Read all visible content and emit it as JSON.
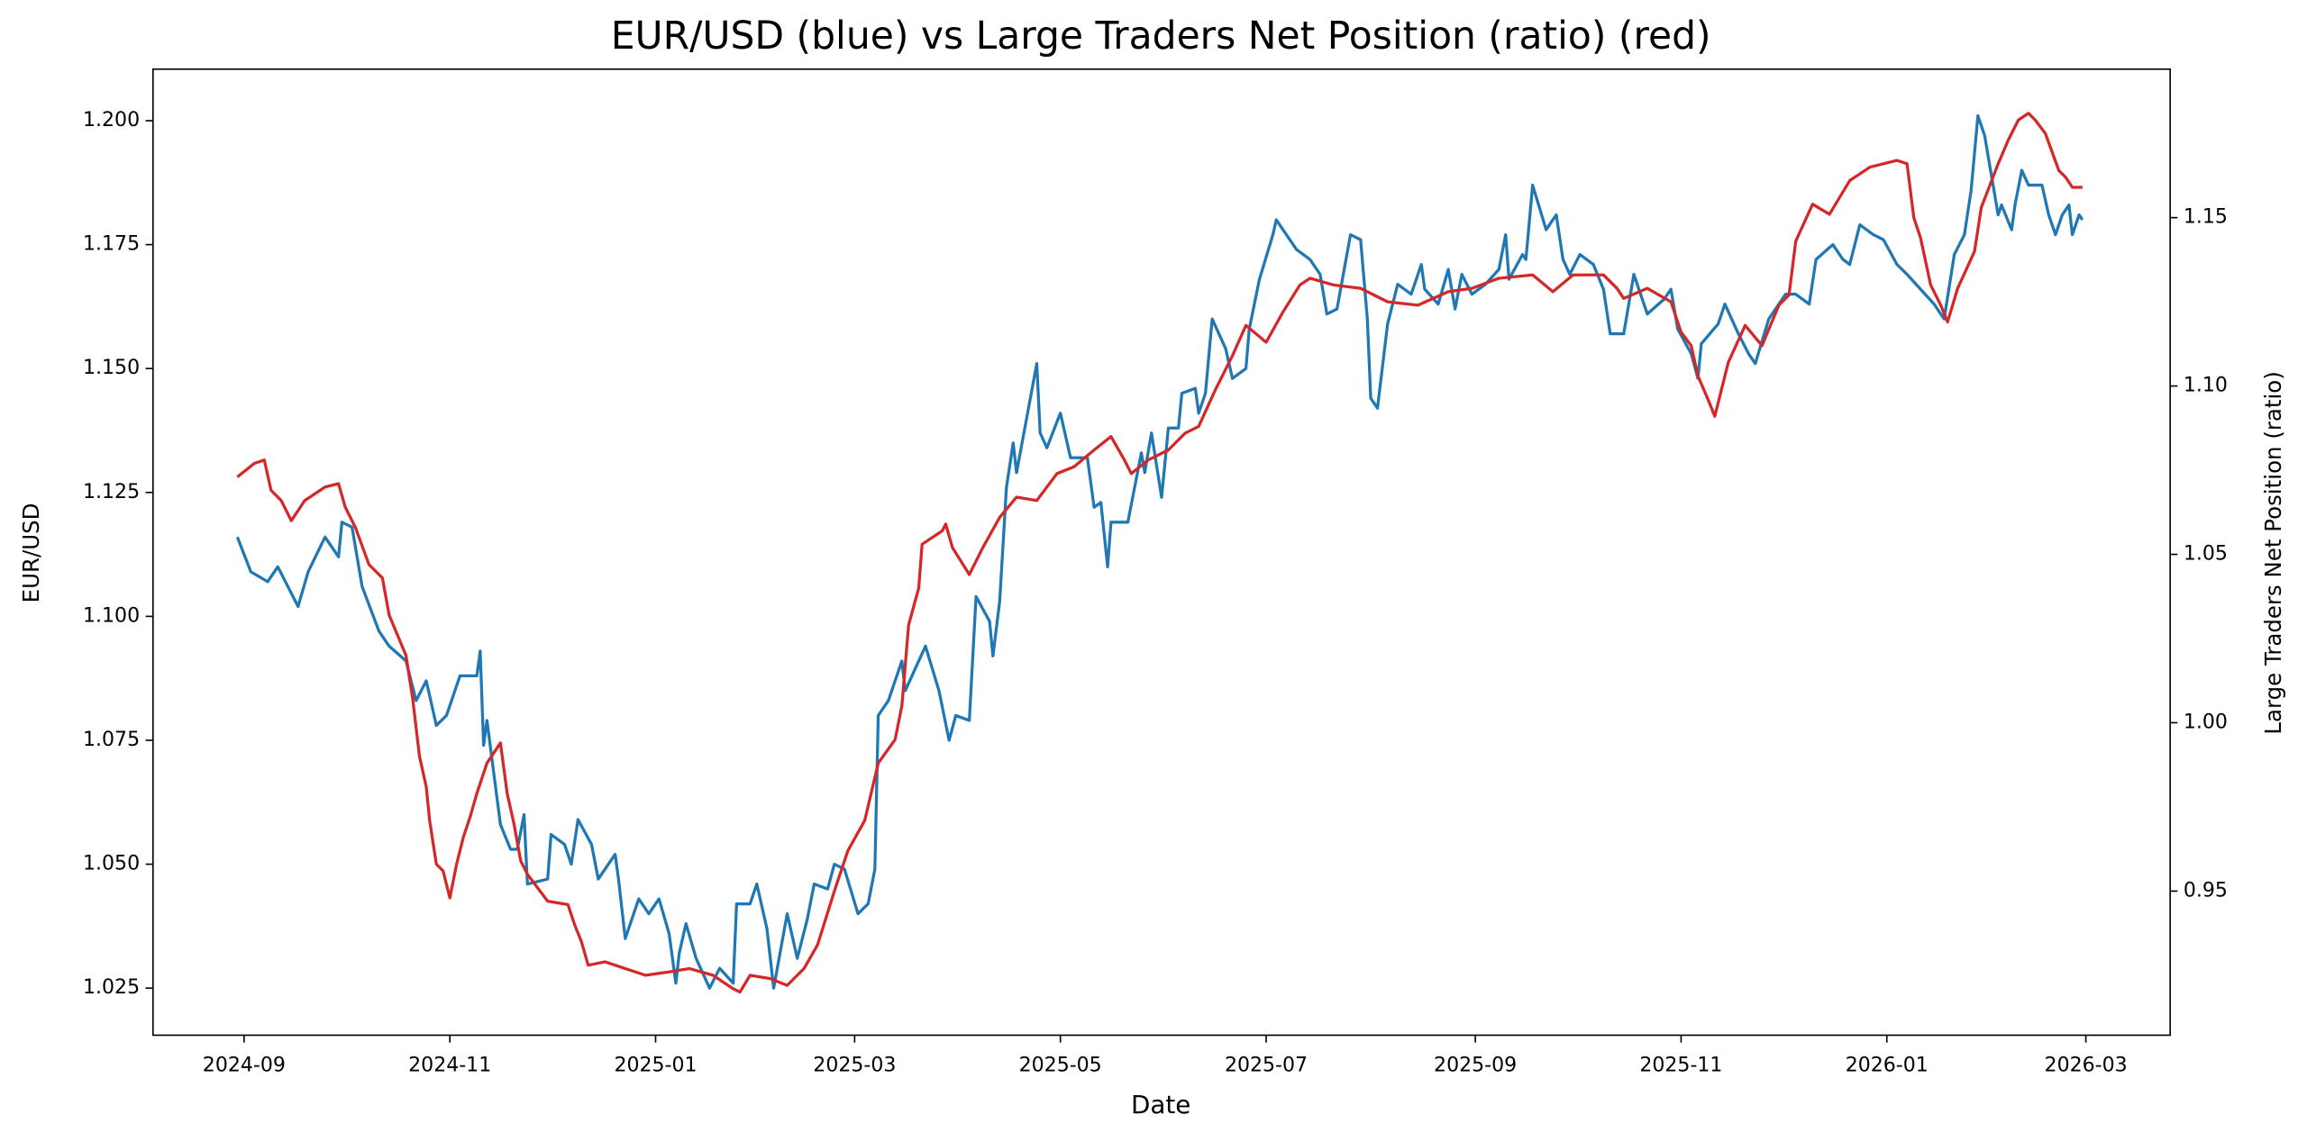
{
  "chart_data": {
    "type": "line",
    "title": "EUR/USD (blue) vs Large Traders Net Position (ratio) (red)",
    "xlabel": "Date",
    "ylabel": "EUR/USD",
    "y2label": "Large Traders Net Position (ratio)",
    "xlim": [
      "2024-08-05",
      "2026-03-26"
    ],
    "xticks": [
      {
        "value": "2024-09-01",
        "label": "2024-09"
      },
      {
        "value": "2024-11-01",
        "label": "2024-11"
      },
      {
        "value": "2025-01-01",
        "label": "2025-01"
      },
      {
        "value": "2025-03-01",
        "label": "2025-03"
      },
      {
        "value": "2025-05-01",
        "label": "2025-05"
      },
      {
        "value": "2025-07-01",
        "label": "2025-07"
      },
      {
        "value": "2025-09-01",
        "label": "2025-09"
      },
      {
        "value": "2025-11-01",
        "label": "2025-11"
      },
      {
        "value": "2026-01-01",
        "label": "2026-01"
      },
      {
        "value": "2026-03-01",
        "label": "2026-03"
      }
    ],
    "ylim": [
      1.0155,
      1.2104
    ],
    "yticks": [
      1.025,
      {
        "value": 1.05,
        "label": "1.050"
      },
      1.075,
      {
        "value": 1.1,
        "label": "1.100"
      },
      1.125,
      {
        "value": 1.15,
        "label": "1.150"
      },
      1.175,
      {
        "value": 1.2,
        "label": "1.200"
      }
    ],
    "y2lim": [
      0.9072,
      1.1941
    ],
    "y2ticks": [
      0.95,
      {
        "value": 1.0,
        "label": "1.00"
      },
      1.05,
      {
        "value": 1.1,
        "label": "1.10"
      },
      1.15
    ],
    "series": [
      {
        "name": "EUR/USD",
        "color": "#1f77b4",
        "x": [
          "2024-08-30",
          "2024-09-03",
          "2024-09-08",
          "2024-09-11",
          "2024-09-17",
          "2024-09-20",
          "2024-09-25",
          "2024-09-29",
          "2024-09-30",
          "2024-10-03",
          "2024-10-06",
          "2024-10-11",
          "2024-10-14",
          "2024-10-19",
          "2024-10-22",
          "2024-10-25",
          "2024-10-28",
          "2024-10-31",
          "2024-11-04",
          "2024-11-09",
          "2024-11-10",
          "2024-11-11",
          "2024-11-12",
          "2024-11-16",
          "2024-11-19",
          "2024-11-21",
          "2024-11-23",
          "2024-11-24",
          "2024-11-30",
          "2024-12-01",
          "2024-12-05",
          "2024-12-07",
          "2024-12-09",
          "2024-12-13",
          "2024-12-15",
          "2024-12-20",
          "2024-12-21",
          "2024-12-23",
          "2024-12-27",
          "2024-12-30",
          "2025-01-02",
          "2025-01-05",
          "2025-01-07",
          "2025-01-08",
          "2025-01-10",
          "2025-01-13",
          "2025-01-17",
          "2025-01-20",
          "2025-01-24",
          "2025-01-25",
          "2025-01-29",
          "2025-01-31",
          "2025-02-03",
          "2025-02-05",
          "2025-02-09",
          "2025-02-12",
          "2025-02-15",
          "2025-02-17",
          "2025-02-21",
          "2025-02-23",
          "2025-02-26",
          "2025-03-02",
          "2025-03-05",
          "2025-03-07",
          "2025-03-08",
          "2025-03-11",
          "2025-03-15",
          "2025-03-16",
          "2025-03-22",
          "2025-03-26",
          "2025-03-29",
          "2025-03-31",
          "2025-04-04",
          "2025-04-06",
          "2025-04-10",
          "2025-04-11",
          "2025-04-13",
          "2025-04-15",
          "2025-04-17",
          "2025-04-18",
          "2025-04-21",
          "2025-04-24",
          "2025-04-25",
          "2025-04-27",
          "2025-05-01",
          "2025-05-04",
          "2025-05-09",
          "2025-05-11",
          "2025-05-13",
          "2025-05-15",
          "2025-05-16",
          "2025-05-21",
          "2025-05-25",
          "2025-05-26",
          "2025-05-28",
          "2025-05-31",
          "2025-06-02",
          "2025-06-05",
          "2025-06-06",
          "2025-06-10",
          "2025-06-11",
          "2025-06-13",
          "2025-06-15",
          "2025-06-19",
          "2025-06-21",
          "2025-06-25",
          "2025-06-26",
          "2025-06-29",
          "2025-07-03",
          "2025-07-04",
          "2025-07-07",
          "2025-07-10",
          "2025-07-14",
          "2025-07-17",
          "2025-07-19",
          "2025-07-22",
          "2025-07-26",
          "2025-07-29",
          "2025-07-31",
          "2025-08-01",
          "2025-08-03",
          "2025-08-06",
          "2025-08-09",
          "2025-08-13",
          "2025-08-16",
          "2025-08-17",
          "2025-08-21",
          "2025-08-24",
          "2025-08-26",
          "2025-08-28",
          "2025-08-31",
          "2025-09-04",
          "2025-09-08",
          "2025-09-10",
          "2025-09-11",
          "2025-09-15",
          "2025-09-16",
          "2025-09-18",
          "2025-09-22",
          "2025-09-23",
          "2025-09-25",
          "2025-09-27",
          "2025-09-29",
          "2025-10-02",
          "2025-10-06",
          "2025-10-09",
          "2025-10-11",
          "2025-10-15",
          "2025-10-18",
          "2025-10-22",
          "2025-10-27",
          "2025-10-29",
          "2025-10-31",
          "2025-11-04",
          "2025-11-06",
          "2025-11-07",
          "2025-11-12",
          "2025-11-14",
          "2025-11-18",
          "2025-11-21",
          "2025-11-23",
          "2025-11-27",
          "2025-12-02",
          "2025-12-05",
          "2025-12-09",
          "2025-12-11",
          "2025-12-16",
          "2025-12-19",
          "2025-12-21",
          "2025-12-24",
          "2025-12-28",
          "2025-12-31",
          "2026-01-04",
          "2026-01-07",
          "2026-01-11",
          "2026-01-15",
          "2026-01-18",
          "2026-01-21",
          "2026-01-24",
          "2026-01-26",
          "2026-01-28",
          "2026-01-30",
          "2026-02-01",
          "2026-02-03",
          "2026-02-04",
          "2026-02-07",
          "2026-02-08",
          "2026-02-10",
          "2026-02-12",
          "2026-02-16",
          "2026-02-18",
          "2026-02-20",
          "2026-02-22",
          "2026-02-24",
          "2026-02-25",
          "2026-02-27",
          "2026-02-28"
        ],
        "values": [
          1.116,
          1.109,
          1.107,
          1.11,
          1.102,
          1.109,
          1.116,
          1.112,
          1.119,
          1.118,
          1.106,
          1.097,
          1.094,
          1.091,
          1.083,
          1.087,
          1.078,
          1.08,
          1.088,
          1.088,
          1.093,
          1.074,
          1.079,
          1.058,
          1.053,
          1.053,
          1.06,
          1.046,
          1.047,
          1.056,
          1.054,
          1.05,
          1.059,
          1.054,
          1.047,
          1.052,
          1.047,
          1.035,
          1.043,
          1.04,
          1.043,
          1.036,
          1.026,
          1.032,
          1.038,
          1.031,
          1.025,
          1.029,
          1.026,
          1.042,
          1.042,
          1.046,
          1.037,
          1.025,
          1.04,
          1.031,
          1.039,
          1.046,
          1.045,
          1.05,
          1.049,
          1.04,
          1.042,
          1.049,
          1.08,
          1.083,
          1.091,
          1.085,
          1.094,
          1.085,
          1.075,
          1.08,
          1.079,
          1.104,
          1.099,
          1.092,
          1.103,
          1.126,
          1.135,
          1.129,
          1.14,
          1.151,
          1.137,
          1.134,
          1.141,
          1.132,
          1.132,
          1.122,
          1.123,
          1.11,
          1.119,
          1.119,
          1.133,
          1.129,
          1.137,
          1.124,
          1.138,
          1.138,
          1.145,
          1.146,
          1.141,
          1.145,
          1.16,
          1.154,
          1.148,
          1.15,
          1.158,
          1.168,
          1.177,
          1.18,
          1.177,
          1.174,
          1.172,
          1.169,
          1.161,
          1.162,
          1.177,
          1.176,
          1.16,
          1.144,
          1.142,
          1.159,
          1.167,
          1.165,
          1.171,
          1.166,
          1.163,
          1.17,
          1.162,
          1.169,
          1.165,
          1.167,
          1.17,
          1.177,
          1.168,
          1.173,
          1.172,
          1.187,
          1.178,
          1.179,
          1.181,
          1.172,
          1.169,
          1.173,
          1.171,
          1.166,
          1.157,
          1.157,
          1.169,
          1.161,
          1.164,
          1.166,
          1.158,
          1.153,
          1.148,
          1.155,
          1.159,
          1.163,
          1.157,
          1.153,
          1.151,
          1.16,
          1.165,
          1.165,
          1.163,
          1.172,
          1.175,
          1.172,
          1.171,
          1.179,
          1.177,
          1.176,
          1.171,
          1.169,
          1.166,
          1.163,
          1.16,
          1.173,
          1.177,
          1.186,
          1.201,
          1.197,
          1.189,
          1.181,
          1.183,
          1.178,
          1.183,
          1.19,
          1.187,
          1.187,
          1.181,
          1.177,
          1.181,
          1.183,
          1.177,
          1.181,
          1.18
        ]
      },
      {
        "name": "Large Traders Net Position (ratio)",
        "color": "#d62728",
        "axis": "y2",
        "x": [
          "2024-08-30",
          "2024-09-04",
          "2024-09-07",
          "2024-09-09",
          "2024-09-12",
          "2024-09-15",
          "2024-09-19",
          "2024-09-25",
          "2024-09-29",
          "2024-10-01",
          "2024-10-04",
          "2024-10-08",
          "2024-10-12",
          "2024-10-14",
          "2024-10-19",
          "2024-10-21",
          "2024-10-23",
          "2024-10-25",
          "2024-10-26",
          "2024-10-28",
          "2024-10-30",
          "2024-11-01",
          "2024-11-03",
          "2024-11-05",
          "2024-11-07",
          "2024-11-09",
          "2024-11-12",
          "2024-11-16",
          "2024-11-18",
          "2024-11-20",
          "2024-11-22",
          "2024-11-24",
          "2024-11-30",
          "2024-12-06",
          "2024-12-08",
          "2024-12-10",
          "2024-12-12",
          "2024-12-17",
          "2024-12-23",
          "2024-12-29",
          "2025-01-05",
          "2025-01-11",
          "2025-01-18",
          "2025-01-24",
          "2025-01-26",
          "2025-01-29",
          "2025-02-04",
          "2025-02-09",
          "2025-02-14",
          "2025-02-18",
          "2025-02-23",
          "2025-02-27",
          "2025-03-04",
          "2025-03-08",
          "2025-03-13",
          "2025-03-15",
          "2025-03-17",
          "2025-03-20",
          "2025-03-21",
          "2025-03-27",
          "2025-03-28",
          "2025-03-30",
          "2025-04-04",
          "2025-04-08",
          "2025-04-13",
          "2025-04-18",
          "2025-04-24",
          "2025-04-30",
          "2025-05-05",
          "2025-05-11",
          "2025-05-16",
          "2025-05-20",
          "2025-05-22",
          "2025-05-27",
          "2025-06-02",
          "2025-06-07",
          "2025-06-11",
          "2025-06-16",
          "2025-06-21",
          "2025-06-25",
          "2025-07-01",
          "2025-07-06",
          "2025-07-11",
          "2025-07-14",
          "2025-07-21",
          "2025-07-29",
          "2025-08-06",
          "2025-08-15",
          "2025-08-24",
          "2025-08-31",
          "2025-09-08",
          "2025-09-18",
          "2025-09-24",
          "2025-09-30",
          "2025-10-09",
          "2025-10-13",
          "2025-10-15",
          "2025-10-22",
          "2025-10-29",
          "2025-11-01",
          "2025-11-04",
          "2025-11-06",
          "2025-11-09",
          "2025-11-11",
          "2025-11-15",
          "2025-11-20",
          "2025-11-25",
          "2025-11-30",
          "2025-12-03",
          "2025-12-05",
          "2025-12-10",
          "2025-12-15",
          "2025-12-21",
          "2025-12-27",
          "2026-01-04",
          "2026-01-07",
          "2026-01-09",
          "2026-01-11",
          "2026-01-14",
          "2026-01-17",
          "2026-01-19",
          "2026-01-22",
          "2026-01-27",
          "2026-01-29",
          "2026-02-03",
          "2026-02-06",
          "2026-02-09",
          "2026-02-12",
          "2026-02-14",
          "2026-02-17",
          "2026-02-21",
          "2026-02-23",
          "2026-02-25",
          "2026-02-28"
        ],
        "values": [
          1.073,
          1.077,
          1.078,
          1.069,
          1.066,
          1.06,
          1.066,
          1.07,
          1.071,
          1.064,
          1.058,
          1.047,
          1.043,
          1.032,
          1.02,
          1.007,
          0.99,
          0.981,
          0.971,
          0.958,
          0.956,
          0.948,
          0.958,
          0.966,
          0.972,
          0.979,
          0.988,
          0.994,
          0.979,
          0.97,
          0.959,
          0.955,
          0.947,
          0.946,
          0.94,
          0.935,
          0.928,
          0.929,
          0.927,
          0.925,
          0.926,
          0.927,
          0.925,
          0.921,
          0.92,
          0.925,
          0.924,
          0.922,
          0.927,
          0.934,
          0.95,
          0.962,
          0.971,
          0.988,
          0.995,
          1.005,
          1.029,
          1.04,
          1.053,
          1.057,
          1.059,
          1.052,
          1.044,
          1.052,
          1.061,
          1.067,
          1.066,
          1.074,
          1.076,
          1.081,
          1.085,
          1.078,
          1.074,
          1.078,
          1.081,
          1.086,
          1.088,
          1.099,
          1.109,
          1.118,
          1.113,
          1.122,
          1.13,
          1.132,
          1.13,
          1.129,
          1.125,
          1.124,
          1.128,
          1.129,
          1.132,
          1.133,
          1.128,
          1.133,
          1.133,
          1.129,
          1.126,
          1.129,
          1.125,
          1.116,
          1.112,
          1.103,
          1.096,
          1.091,
          1.107,
          1.118,
          1.112,
          1.124,
          1.127,
          1.143,
          1.154,
          1.151,
          1.161,
          1.165,
          1.167,
          1.166,
          1.15,
          1.144,
          1.13,
          1.124,
          1.119,
          1.129,
          1.14,
          1.153,
          1.166,
          1.173,
          1.179,
          1.181,
          1.179,
          1.175,
          1.164,
          1.162,
          1.159,
          1.159
        ]
      }
    ]
  }
}
